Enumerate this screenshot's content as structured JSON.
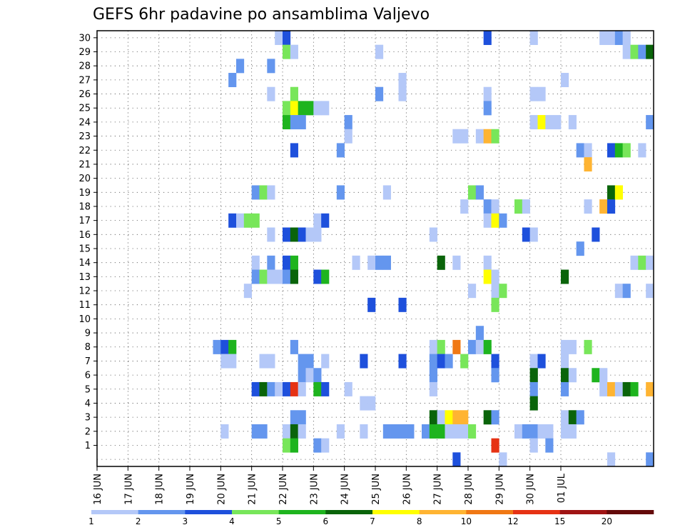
{
  "chart_data": {
    "type": "heatmap",
    "title": "GEFS 6hr padavine po ansamblima Valjevo",
    "y_ticks": [
      "1",
      "2",
      "3",
      "4",
      "5",
      "6",
      "7",
      "8",
      "9",
      "10",
      "11",
      "12",
      "13",
      "14",
      "15",
      "16",
      "17",
      "18",
      "19",
      "20",
      "21",
      "22",
      "23",
      "24",
      "25",
      "26",
      "27",
      "28",
      "29",
      "30"
    ],
    "ylim": [
      0,
      30
    ],
    "x_ticks": [
      "16 JUN",
      "17 JUN",
      "18 JUN",
      "19 JUN",
      "20 JUN",
      "21 JUN",
      "22 JUN",
      "23 JUN",
      "24 JUN",
      "25 JUN",
      "26 JUN",
      "27 JUN",
      "28 JUN",
      "29 JUN",
      "30 JUN",
      "01 JUL"
    ],
    "x_step_hours": 6,
    "n_steps": 60,
    "grid": true,
    "legend": {
      "placement": "bottom",
      "labels": [
        "1",
        "2",
        "3",
        "4",
        "5",
        "6",
        "7",
        "8",
        "10",
        "12",
        "15",
        "20"
      ],
      "colors": [
        "#b4c8f8",
        "#6496ee",
        "#1e50dc",
        "#78e65a",
        "#1eb41e",
        "#0a640a",
        "#ffff00",
        "#ffb432",
        "#f07814",
        "#e63214",
        "#a01414",
        "#640a0a"
      ]
    },
    "cells": [
      [
        23,
        30,
        1
      ],
      [
        24,
        30,
        3
      ],
      [
        50,
        30,
        3
      ],
      [
        56,
        30,
        1
      ],
      [
        65,
        30,
        1
      ],
      [
        66,
        30,
        1
      ],
      [
        67,
        30,
        2
      ],
      [
        68,
        30,
        1
      ],
      [
        24,
        29,
        4
      ],
      [
        25,
        29,
        1
      ],
      [
        36,
        29,
        1
      ],
      [
        68,
        29,
        1
      ],
      [
        69,
        29,
        4
      ],
      [
        70,
        29,
        2
      ],
      [
        71,
        29,
        6
      ],
      [
        18,
        28,
        2
      ],
      [
        22,
        28,
        2
      ],
      [
        17,
        27,
        2
      ],
      [
        39,
        27,
        1
      ],
      [
        60,
        27,
        1
      ],
      [
        22,
        26,
        1
      ],
      [
        25,
        26,
        4
      ],
      [
        36,
        26,
        2
      ],
      [
        39,
        26,
        1
      ],
      [
        50,
        26,
        1
      ],
      [
        56,
        26,
        1
      ],
      [
        57,
        26,
        1
      ],
      [
        24,
        25,
        4
      ],
      [
        25,
        25,
        7
      ],
      [
        26,
        25,
        5
      ],
      [
        27,
        25,
        5
      ],
      [
        28,
        25,
        1
      ],
      [
        29,
        25,
        1
      ],
      [
        50,
        25,
        2
      ],
      [
        24,
        24,
        5
      ],
      [
        25,
        24,
        2
      ],
      [
        26,
        24,
        2
      ],
      [
        32,
        24,
        2
      ],
      [
        56,
        24,
        1
      ],
      [
        57,
        24,
        7
      ],
      [
        58,
        24,
        1
      ],
      [
        59,
        24,
        1
      ],
      [
        61,
        24,
        1
      ],
      [
        71,
        24,
        2
      ],
      [
        32,
        23,
        1
      ],
      [
        46,
        23,
        1
      ],
      [
        47,
        23,
        1
      ],
      [
        49,
        23,
        1
      ],
      [
        50,
        23,
        8
      ],
      [
        51,
        23,
        4
      ],
      [
        25,
        22,
        3
      ],
      [
        31,
        22,
        2
      ],
      [
        62,
        22,
        2
      ],
      [
        63,
        22,
        1
      ],
      [
        66,
        22,
        3
      ],
      [
        67,
        22,
        5
      ],
      [
        68,
        22,
        4
      ],
      [
        70,
        22,
        1
      ],
      [
        63,
        21,
        8
      ],
      [
        20,
        19,
        2
      ],
      [
        21,
        19,
        4
      ],
      [
        22,
        19,
        1
      ],
      [
        31,
        19,
        2
      ],
      [
        37,
        19,
        1
      ],
      [
        48,
        19,
        4
      ],
      [
        49,
        19,
        2
      ],
      [
        66,
        19,
        6
      ],
      [
        67,
        19,
        7
      ],
      [
        47,
        18,
        1
      ],
      [
        50,
        18,
        2
      ],
      [
        51,
        18,
        1
      ],
      [
        54,
        18,
        4
      ],
      [
        55,
        18,
        1
      ],
      [
        63,
        18,
        1
      ],
      [
        65,
        18,
        8
      ],
      [
        66,
        18,
        3
      ],
      [
        17,
        17,
        3
      ],
      [
        18,
        17,
        1
      ],
      [
        19,
        17,
        4
      ],
      [
        20,
        17,
        4
      ],
      [
        28,
        17,
        1
      ],
      [
        29,
        17,
        3
      ],
      [
        50,
        17,
        1
      ],
      [
        51,
        17,
        7
      ],
      [
        52,
        17,
        2
      ],
      [
        22,
        16,
        1
      ],
      [
        24,
        16,
        3
      ],
      [
        25,
        16,
        6
      ],
      [
        26,
        16,
        3
      ],
      [
        27,
        16,
        1
      ],
      [
        28,
        16,
        1
      ],
      [
        43,
        16,
        1
      ],
      [
        55,
        16,
        3
      ],
      [
        56,
        16,
        1
      ],
      [
        64,
        16,
        3
      ],
      [
        62,
        15,
        2
      ],
      [
        20,
        14,
        1
      ],
      [
        22,
        14,
        2
      ],
      [
        24,
        14,
        3
      ],
      [
        25,
        14,
        5
      ],
      [
        33,
        14,
        1
      ],
      [
        35,
        14,
        1
      ],
      [
        36,
        14,
        2
      ],
      [
        37,
        14,
        2
      ],
      [
        44,
        14,
        6
      ],
      [
        46,
        14,
        1
      ],
      [
        50,
        14,
        1
      ],
      [
        69,
        14,
        1
      ],
      [
        70,
        14,
        4
      ],
      [
        71,
        14,
        1
      ],
      [
        20,
        13,
        2
      ],
      [
        21,
        13,
        4
      ],
      [
        22,
        13,
        1
      ],
      [
        23,
        13,
        1
      ],
      [
        24,
        13,
        2
      ],
      [
        25,
        13,
        6
      ],
      [
        28,
        13,
        3
      ],
      [
        29,
        13,
        5
      ],
      [
        50,
        13,
        7
      ],
      [
        51,
        13,
        1
      ],
      [
        60,
        13,
        6
      ],
      [
        19,
        12,
        1
      ],
      [
        48,
        12,
        1
      ],
      [
        51,
        12,
        1
      ],
      [
        52,
        12,
        4
      ],
      [
        67,
        12,
        1
      ],
      [
        68,
        12,
        2
      ],
      [
        71,
        12,
        1
      ],
      [
        35,
        11,
        3
      ],
      [
        39,
        11,
        3
      ],
      [
        51,
        11,
        4
      ],
      [
        49,
        9,
        2
      ],
      [
        15,
        8,
        2
      ],
      [
        16,
        8,
        3
      ],
      [
        17,
        8,
        5
      ],
      [
        25,
        8,
        2
      ],
      [
        43,
        8,
        1
      ],
      [
        44,
        8,
        4
      ],
      [
        46,
        8,
        9
      ],
      [
        48,
        8,
        2
      ],
      [
        49,
        8,
        1
      ],
      [
        50,
        8,
        5
      ],
      [
        60,
        8,
        1
      ],
      [
        61,
        8,
        1
      ],
      [
        63,
        8,
        4
      ],
      [
        16,
        7,
        1
      ],
      [
        17,
        7,
        1
      ],
      [
        21,
        7,
        1
      ],
      [
        22,
        7,
        1
      ],
      [
        26,
        7,
        2
      ],
      [
        27,
        7,
        2
      ],
      [
        29,
        7,
        1
      ],
      [
        34,
        7,
        3
      ],
      [
        39,
        7,
        3
      ],
      [
        43,
        7,
        2
      ],
      [
        44,
        7,
        3
      ],
      [
        45,
        7,
        2
      ],
      [
        47,
        7,
        4
      ],
      [
        51,
        7,
        3
      ],
      [
        56,
        7,
        1
      ],
      [
        57,
        7,
        3
      ],
      [
        60,
        7,
        1
      ],
      [
        26,
        6,
        2
      ],
      [
        27,
        6,
        1
      ],
      [
        28,
        6,
        2
      ],
      [
        43,
        6,
        2
      ],
      [
        51,
        6,
        2
      ],
      [
        56,
        6,
        6
      ],
      [
        60,
        6,
        6
      ],
      [
        61,
        6,
        1
      ],
      [
        64,
        6,
        5
      ],
      [
        65,
        6,
        1
      ],
      [
        20,
        5,
        3
      ],
      [
        21,
        5,
        6
      ],
      [
        22,
        5,
        2
      ],
      [
        23,
        5,
        1
      ],
      [
        24,
        5,
        3
      ],
      [
        25,
        5,
        10
      ],
      [
        26,
        5,
        1
      ],
      [
        28,
        5,
        5
      ],
      [
        29,
        5,
        3
      ],
      [
        32,
        5,
        1
      ],
      [
        43,
        5,
        1
      ],
      [
        56,
        5,
        2
      ],
      [
        60,
        5,
        2
      ],
      [
        65,
        5,
        1
      ],
      [
        66,
        5,
        8
      ],
      [
        67,
        5,
        1
      ],
      [
        68,
        5,
        6
      ],
      [
        69,
        5,
        5
      ],
      [
        71,
        5,
        8
      ],
      [
        34,
        4,
        1
      ],
      [
        35,
        4,
        1
      ],
      [
        56,
        4,
        6
      ],
      [
        25,
        3,
        2
      ],
      [
        26,
        3,
        2
      ],
      [
        43,
        3,
        6
      ],
      [
        44,
        3,
        1
      ],
      [
        45,
        3,
        7
      ],
      [
        46,
        3,
        8
      ],
      [
        47,
        3,
        8
      ],
      [
        50,
        3,
        6
      ],
      [
        51,
        3,
        2
      ],
      [
        60,
        3,
        1
      ],
      [
        61,
        3,
        6
      ],
      [
        62,
        3,
        2
      ],
      [
        16,
        2,
        1
      ],
      [
        20,
        2,
        2
      ],
      [
        21,
        2,
        2
      ],
      [
        24,
        2,
        1
      ],
      [
        25,
        2,
        6
      ],
      [
        26,
        2,
        1
      ],
      [
        31,
        2,
        1
      ],
      [
        34,
        2,
        1
      ],
      [
        37,
        2,
        2
      ],
      [
        38,
        2,
        2
      ],
      [
        39,
        2,
        2
      ],
      [
        40,
        2,
        2
      ],
      [
        42,
        2,
        2
      ],
      [
        43,
        2,
        5
      ],
      [
        44,
        2,
        5
      ],
      [
        45,
        2,
        1
      ],
      [
        46,
        2,
        1
      ],
      [
        47,
        2,
        1
      ],
      [
        48,
        2,
        4
      ],
      [
        54,
        2,
        1
      ],
      [
        55,
        2,
        2
      ],
      [
        56,
        2,
        2
      ],
      [
        57,
        2,
        1
      ],
      [
        58,
        2,
        1
      ],
      [
        60,
        2,
        1
      ],
      [
        61,
        2,
        1
      ],
      [
        24,
        1,
        4
      ],
      [
        25,
        1,
        5
      ],
      [
        28,
        1,
        2
      ],
      [
        29,
        1,
        1
      ],
      [
        51,
        1,
        10
      ],
      [
        56,
        1,
        1
      ],
      [
        58,
        1,
        2
      ],
      [
        46,
        0,
        3
      ],
      [
        52,
        0,
        1
      ],
      [
        66,
        0,
        1
      ],
      [
        71,
        0,
        2
      ]
    ]
  }
}
